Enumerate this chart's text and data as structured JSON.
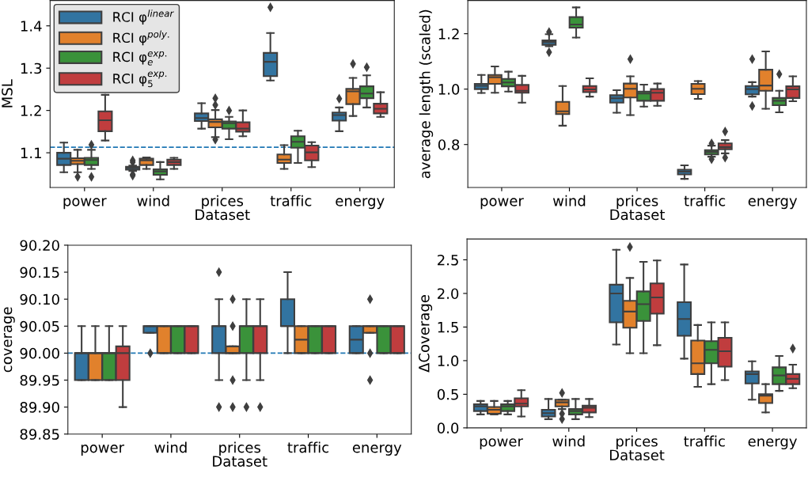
{
  "chart_data": [
    {
      "type": "box",
      "xlabel": "Dataset",
      "ylabel": "MSL",
      "categories": [
        "power",
        "wind",
        "prices",
        "traffic",
        "energy"
      ],
      "ylim": [
        1.018,
        1.46
      ],
      "yticks": [
        1.1,
        1.2,
        1.3,
        1.4
      ],
      "legend": "top left",
      "ref_lines": [
        {
          "axis": "y",
          "value": 1.113,
          "color": "#1f77b4",
          "line_style": "dashed"
        }
      ],
      "series": [
        {
          "name": "RCI φ$^{linear}$",
          "color": "#3274a1",
          "boxes": [
            {
              "low": 1.054,
              "q1": 1.071,
              "median": 1.086,
              "q3": 1.1,
              "high": 1.124
            },
            {
              "low": 1.057,
              "q1": 1.06,
              "median": 1.064,
              "q3": 1.067,
              "high": 1.07,
              "outliers": [
                1.082,
                1.078,
                1.049,
                1.046
              ]
            },
            {
              "low": 1.157,
              "q1": 1.175,
              "median": 1.182,
              "q3": 1.193,
              "high": 1.217
            },
            {
              "low": 1.271,
              "q1": 1.281,
              "median": 1.315,
              "q3": 1.336,
              "high": 1.383,
              "outliers": [
                1.444
              ]
            },
            {
              "low": 1.151,
              "q1": 1.176,
              "median": 1.189,
              "q3": 1.195,
              "high": 1.207,
              "outliers": [
                1.228
              ]
            }
          ]
        },
        {
          "name": "RCI φ$^{poly.}$",
          "color": "#e1812c",
          "boxes": [
            {
              "low": 1.054,
              "q1": 1.073,
              "median": 1.081,
              "q3": 1.087,
              "high": 1.107,
              "outliers": [
                1.043
              ]
            },
            {
              "low": 1.062,
              "q1": 1.071,
              "median": 1.082,
              "q3": 1.086,
              "high": 1.089
            },
            {
              "low": 1.137,
              "q1": 1.16,
              "median": 1.173,
              "q3": 1.179,
              "high": 1.201,
              "outliers": [
                1.229,
                1.213,
                1.131
              ]
            },
            {
              "low": 1.062,
              "q1": 1.076,
              "median": 1.084,
              "q3": 1.096,
              "high": 1.118
            },
            {
              "low": 1.187,
              "q1": 1.215,
              "median": 1.245,
              "q3": 1.251,
              "high": 1.277,
              "outliers": [
                1.31
              ]
            }
          ]
        },
        {
          "name": "RCI φ$^{exp.}$$_{e}$",
          "color": "#3a923a",
          "boxes": [
            {
              "low": 1.062,
              "q1": 1.071,
              "median": 1.083,
              "q3": 1.088,
              "high": 1.107,
              "outliers": [
                1.119,
                1.043
              ]
            },
            {
              "low": 1.037,
              "q1": 1.048,
              "median": 1.056,
              "q3": 1.061,
              "high": 1.078
            },
            {
              "low": 1.132,
              "q1": 1.157,
              "median": 1.17,
              "q3": 1.174,
              "high": 1.185,
              "outliers": [
                1.2
              ]
            },
            {
              "low": 1.076,
              "q1": 1.112,
              "median": 1.126,
              "q3": 1.139,
              "high": 1.152
            },
            {
              "low": 1.207,
              "q1": 1.229,
              "median": 1.24,
              "q3": 1.257,
              "high": 1.283,
              "outliers": [
                1.302
              ]
            }
          ]
        },
        {
          "name": "RCI φ$^{exp.}$$_{5}$",
          "color": "#c03d3e",
          "boxes": [
            {
              "low": 1.129,
              "q1": 1.151,
              "median": 1.177,
              "q3": 1.198,
              "high": 1.237
            },
            {
              "low": 1.062,
              "q1": 1.071,
              "median": 1.078,
              "q3": 1.084,
              "high": 1.088
            },
            {
              "low": 1.139,
              "q1": 1.15,
              "median": 1.157,
              "q3": 1.172,
              "high": 1.2
            },
            {
              "low": 1.066,
              "q1": 1.082,
              "median": 1.101,
              "q3": 1.117,
              "high": 1.125
            },
            {
              "low": 1.185,
              "q1": 1.193,
              "median": 1.204,
              "q3": 1.216,
              "high": 1.243
            }
          ]
        }
      ]
    },
    {
      "type": "box",
      "xlabel": "Dataset",
      "ylabel": "average length (scaled)",
      "categories": [
        "power",
        "wind",
        "prices",
        "traffic",
        "energy"
      ],
      "ylim": [
        0.645,
        1.32
      ],
      "yticks": [
        0.8,
        {
          "value": 1.0,
          "label": "1.0"
        },
        1.2
      ],
      "series": [
        {
          "color": "#3274a1",
          "boxes": [
            {
              "low": 0.986,
              "q1": 1.0,
              "median": 1.012,
              "q3": 1.019,
              "high": 1.051
            },
            {
              "low": 1.155,
              "q1": 1.16,
              "median": 1.17,
              "q3": 1.176,
              "high": 1.198,
              "outliers": [
                1.206,
                1.133
              ]
            },
            {
              "low": 0.915,
              "q1": 0.951,
              "median": 0.967,
              "q3": 0.978,
              "high": 0.996
            },
            {
              "low": 0.676,
              "q1": 0.692,
              "median": 0.702,
              "q3": 0.709,
              "high": 0.725
            },
            {
              "low": 0.973,
              "q1": 0.981,
              "median": 1.0,
              "q3": 1.011,
              "high": 1.025,
              "outliers": [
                1.108,
                0.939
              ]
            }
          ]
        },
        {
          "color": "#e1812c",
          "boxes": [
            {
              "low": 0.987,
              "q1": 1.019,
              "median": 1.043,
              "q3": 1.051,
              "high": 1.082
            },
            {
              "low": 0.868,
              "q1": 0.91,
              "median": 0.92,
              "q3": 0.954,
              "high": 1.011
            },
            {
              "low": 0.906,
              "q1": 0.97,
              "median": 1.001,
              "q3": 1.02,
              "high": 1.046,
              "outliers": [
                1.108
              ]
            },
            {
              "low": 0.965,
              "q1": 0.982,
              "median": 1.001,
              "q3": 1.019,
              "high": 1.029
            },
            {
              "low": 0.929,
              "q1": 0.994,
              "median": 1.013,
              "q3": 1.07,
              "high": 1.136
            }
          ]
        },
        {
          "color": "#3a923a",
          "boxes": [
            {
              "low": 0.991,
              "q1": 1.01,
              "median": 1.024,
              "q3": 1.037,
              "high": 1.063
            },
            {
              "low": 1.186,
              "q1": 1.222,
              "median": 1.233,
              "q3": 1.26,
              "high": 1.295
            },
            {
              "low": 0.937,
              "q1": 0.958,
              "median": 0.984,
              "q3": 0.991,
              "high": 1.016
            },
            {
              "low": 0.756,
              "q1": 0.764,
              "median": 0.773,
              "q3": 0.78,
              "high": 0.796,
              "outliers": [
                0.804,
                0.747
              ]
            },
            {
              "low": 0.916,
              "q1": 0.942,
              "median": 0.958,
              "q3": 0.968,
              "high": 0.994,
              "outliers": [
                1.054
              ]
            }
          ]
        },
        {
          "color": "#c03d3e",
          "boxes": [
            {
              "low": 0.951,
              "q1": 0.987,
              "median": 0.994,
              "q3": 1.015,
              "high": 1.048
            },
            {
              "low": 0.973,
              "q1": 0.989,
              "median": 0.999,
              "q3": 1.011,
              "high": 1.039
            },
            {
              "low": 0.94,
              "q1": 0.958,
              "median": 0.987,
              "q3": 1.0,
              "high": 1.02
            },
            {
              "low": 0.768,
              "q1": 0.783,
              "median": 0.791,
              "q3": 0.804,
              "high": 0.816,
              "outliers": [
                0.847,
                0.753
              ]
            },
            {
              "low": 0.956,
              "q1": 0.968,
              "median": 0.999,
              "q3": 1.01,
              "high": 1.046
            }
          ]
        }
      ]
    },
    {
      "type": "box",
      "xlabel": "Dataset",
      "ylabel": "coverage",
      "categories": [
        "power",
        "wind",
        "prices",
        "traffic",
        "energy"
      ],
      "ylim": [
        89.85,
        90.2
      ],
      "yticks": [
        {
          "value": 89.85,
          "label": "89.85"
        },
        {
          "value": 89.9,
          "label": "89.90"
        },
        {
          "value": 89.95,
          "label": "89.95"
        },
        {
          "value": 90.0,
          "label": "90.00"
        },
        {
          "value": 90.05,
          "label": "90.05"
        },
        {
          "value": 90.1,
          "label": "90.10"
        },
        {
          "value": 90.15,
          "label": "90.15"
        },
        {
          "value": 90.2,
          "label": "90.20"
        }
      ],
      "ref_lines": [
        {
          "axis": "y",
          "value": 90.0,
          "color": "#1f77b4",
          "line_style": "dashed"
        }
      ],
      "series": [
        {
          "color": "#3274a1",
          "boxes": [
            {
              "low": 89.95,
              "q1": 89.95,
              "median": 90.0,
              "q3": 90.0,
              "high": 90.05
            },
            {
              "low": 90.0375,
              "q1": 90.0375,
              "median": 90.05,
              "q3": 90.05,
              "high": 90.05,
              "outliers": [
                90.0
              ]
            },
            {
              "low": 89.95,
              "q1": 90.0,
              "median": 90.05,
              "q3": 90.05,
              "high": 90.1,
              "outliers": [
                90.15,
                89.9
              ]
            },
            {
              "low": 90.0,
              "q1": 90.05,
              "median": 90.05,
              "q3": 90.1,
              "high": 90.15
            },
            {
              "low": 90.0,
              "q1": 90.0,
              "median": 90.025,
              "q3": 90.05,
              "high": 90.05
            }
          ]
        },
        {
          "color": "#e1812c",
          "boxes": [
            {
              "low": 89.95,
              "q1": 89.95,
              "median": 90.0,
              "q3": 90.0,
              "high": 90.05
            },
            {
              "low": 90.0,
              "q1": 90.0,
              "median": 90.05,
              "q3": 90.05,
              "high": 90.05
            },
            {
              "low": 90.0,
              "q1": 90.0,
              "median": 90.0,
              "q3": 90.0125,
              "high": 90.0125,
              "outliers": [
                90.1,
                90.05,
                89.95,
                89.9
              ]
            },
            {
              "low": 90.0,
              "q1": 90.0,
              "median": 90.025,
              "q3": 90.05,
              "high": 90.05
            },
            {
              "low": 90.0375,
              "q1": 90.0375,
              "median": 90.05,
              "q3": 90.05,
              "high": 90.05,
              "outliers": [
                90.1,
                90.0,
                89.95
              ]
            }
          ]
        },
        {
          "color": "#3a923a",
          "boxes": [
            {
              "low": 89.95,
              "q1": 89.95,
              "median": 90.0,
              "q3": 90.0,
              "high": 90.05
            },
            {
              "low": 90.0,
              "q1": 90.0,
              "median": 90.05,
              "q3": 90.05,
              "high": 90.05
            },
            {
              "low": 89.95,
              "q1": 90.0,
              "median": 90.05,
              "q3": 90.05,
              "high": 90.1,
              "outliers": [
                89.9
              ]
            },
            {
              "low": 90.0,
              "q1": 90.0,
              "median": 90.05,
              "q3": 90.05,
              "high": 90.05
            },
            {
              "low": 90.0,
              "q1": 90.0,
              "median": 90.05,
              "q3": 90.05,
              "high": 90.05
            }
          ]
        },
        {
          "color": "#c03d3e",
          "boxes": [
            {
              "low": 89.9,
              "q1": 89.95,
              "median": 90.0,
              "q3": 90.0125,
              "high": 90.05
            },
            {
              "low": 90.0,
              "q1": 90.0,
              "median": 90.05,
              "q3": 90.05,
              "high": 90.05
            },
            {
              "low": 89.95,
              "q1": 90.0,
              "median": 90.05,
              "q3": 90.05,
              "high": 90.1,
              "outliers": [
                89.9
              ]
            },
            {
              "low": 90.0,
              "q1": 90.0,
              "median": 90.05,
              "q3": 90.05,
              "high": 90.05
            },
            {
              "low": 90.0,
              "q1": 90.0,
              "median": 90.05,
              "q3": 90.05,
              "high": 90.05
            }
          ]
        }
      ]
    },
    {
      "type": "box",
      "xlabel": "Dataset",
      "ylabel": "ΔCoverage",
      "categories": [
        "power",
        "wind",
        "prices",
        "traffic",
        "energy"
      ],
      "ylim": [
        0.0,
        2.81
      ],
      "yticks": [
        {
          "value": 0,
          "label": "0.0"
        },
        0.5,
        {
          "value": 1,
          "label": "1.0"
        },
        1.5,
        {
          "value": 2,
          "label": "2.0"
        },
        2.5
      ],
      "series": [
        {
          "color": "#3274a1",
          "boxes": [
            {
              "low": 0.2,
              "q1": 0.25,
              "median": 0.32,
              "q3": 0.35,
              "high": 0.4
            },
            {
              "low": 0.13,
              "q1": 0.17,
              "median": 0.22,
              "q3": 0.27,
              "high": 0.43
            },
            {
              "low": 1.24,
              "q1": 1.57,
              "median": 2.0,
              "q3": 2.13,
              "high": 2.65
            },
            {
              "low": 1.03,
              "q1": 1.37,
              "median": 1.62,
              "q3": 1.87,
              "high": 2.43
            },
            {
              "low": 0.42,
              "q1": 0.66,
              "median": 0.8,
              "q3": 0.84,
              "high": 0.99
            }
          ]
        },
        {
          "color": "#e1812c",
          "boxes": [
            {
              "low": 0.2,
              "q1": 0.21,
              "median": 0.27,
              "q3": 0.31,
              "high": 0.4
            },
            {
              "low": 0.28,
              "q1": 0.32,
              "median": 0.38,
              "q3": 0.42,
              "high": 0.42,
              "outliers": [
                0.52,
                0.21,
                0.13
              ]
            },
            {
              "low": 1.11,
              "q1": 1.49,
              "median": 1.73,
              "q3": 1.89,
              "high": 2.23,
              "outliers": [
                2.69
              ]
            },
            {
              "low": 0.61,
              "q1": 0.8,
              "median": 0.96,
              "q3": 1.3,
              "high": 1.53
            },
            {
              "low": 0.23,
              "q1": 0.37,
              "median": 0.48,
              "q3": 0.5,
              "high": 0.65
            }
          ]
        },
        {
          "color": "#3a923a",
          "boxes": [
            {
              "low": 0.2,
              "q1": 0.25,
              "median": 0.32,
              "q3": 0.35,
              "high": 0.4
            },
            {
              "low": 0.13,
              "q1": 0.2,
              "median": 0.25,
              "q3": 0.28,
              "high": 0.43
            },
            {
              "low": 1.11,
              "q1": 1.59,
              "median": 1.84,
              "q3": 2.03,
              "high": 2.47
            },
            {
              "low": 0.65,
              "q1": 0.96,
              "median": 1.16,
              "q3": 1.29,
              "high": 1.57
            },
            {
              "low": 0.55,
              "q1": 0.65,
              "median": 0.78,
              "q3": 0.9,
              "high": 1.07
            }
          ]
        },
        {
          "color": "#c03d3e",
          "boxes": [
            {
              "low": 0.17,
              "q1": 0.32,
              "median": 0.36,
              "q3": 0.44,
              "high": 0.56
            },
            {
              "low": 0.16,
              "q1": 0.23,
              "median": 0.3,
              "q3": 0.33,
              "high": 0.43
            },
            {
              "low": 1.23,
              "q1": 1.7,
              "median": 1.94,
              "q3": 2.15,
              "high": 2.49
            },
            {
              "low": 0.71,
              "q1": 0.91,
              "median": 1.14,
              "q3": 1.34,
              "high": 1.57
            },
            {
              "low": 0.59,
              "q1": 0.65,
              "median": 0.73,
              "q3": 0.8,
              "high": 0.94,
              "outliers": [
                1.18
              ]
            }
          ]
        }
      ]
    }
  ]
}
